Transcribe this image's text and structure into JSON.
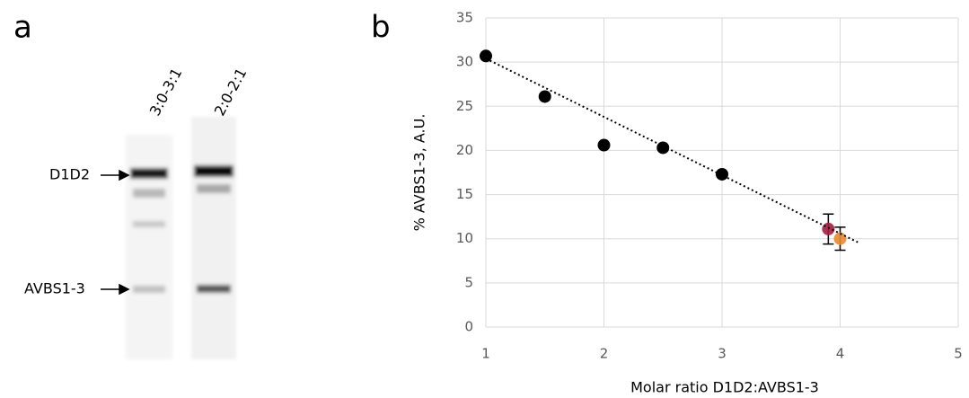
{
  "panel_a": {
    "label": "a",
    "lanes": [
      "3:0-3:1",
      "2:0-2:1"
    ],
    "bands": [
      "D1D2",
      "AVBS1-3"
    ]
  },
  "chart_data": {
    "type": "scatter",
    "panel_label": "b",
    "x_label": "Molar ratio D1D2:AVBS1-3",
    "y_label": "% AVBS1-3, A.U.",
    "xlim": [
      1,
      5
    ],
    "xticks": [
      1,
      2,
      3,
      4,
      5
    ],
    "ylim": [
      0,
      35
    ],
    "yticks": [
      0,
      5,
      10,
      15,
      20,
      25,
      30,
      35
    ],
    "grid": true,
    "series": [
      {
        "color": "#000000",
        "x": [
          1,
          1.5,
          2,
          2.5,
          3
        ],
        "values": [
          30.7,
          26.1,
          20.6,
          20.3,
          17.3
        ]
      },
      {
        "color": "#a51d40",
        "x": [
          3.9
        ],
        "values": [
          11.1
        ],
        "errors": [
          1.7
        ]
      },
      {
        "color": "#e88a2e",
        "x": [
          4
        ],
        "values": [
          10.0
        ],
        "errors": [
          1.3
        ]
      },
      {
        "color": "#000000",
        "line": "dotted",
        "x": [
          1,
          4.15
        ],
        "values": [
          30.4,
          9.6
        ]
      }
    ]
  }
}
